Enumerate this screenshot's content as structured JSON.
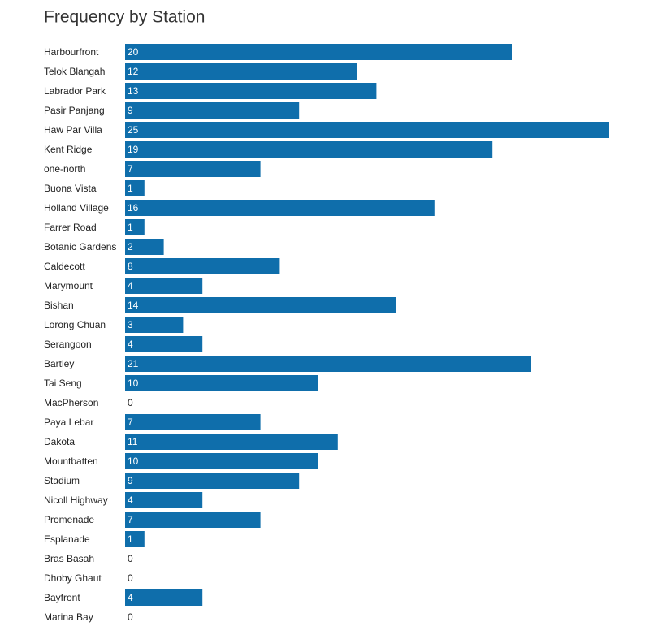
{
  "chart_data": {
    "type": "bar",
    "orientation": "horizontal",
    "title": "Frequency by Station",
    "categories": [
      "Harbourfront",
      "Telok Blangah",
      "Labrador Park",
      "Pasir Panjang",
      "Haw Par Villa",
      "Kent Ridge",
      "one-north",
      "Buona Vista",
      "Holland Village",
      "Farrer Road",
      "Botanic Gardens",
      "Caldecott",
      "Marymount",
      "Bishan",
      "Lorong Chuan",
      "Serangoon",
      "Bartley",
      "Tai Seng",
      "MacPherson",
      "Paya Lebar",
      "Dakota",
      "Mountbatten",
      "Stadium",
      "Nicoll Highway",
      "Promenade",
      "Esplanade",
      "Bras Basah",
      "Dhoby Ghaut",
      "Bayfront",
      "Marina Bay"
    ],
    "values": [
      20,
      12,
      13,
      9,
      25,
      19,
      7,
      1,
      16,
      1,
      2,
      8,
      4,
      14,
      3,
      4,
      21,
      10,
      0,
      7,
      11,
      10,
      9,
      4,
      7,
      1,
      0,
      0,
      4,
      0
    ],
    "color": "#0f6eab"
  }
}
